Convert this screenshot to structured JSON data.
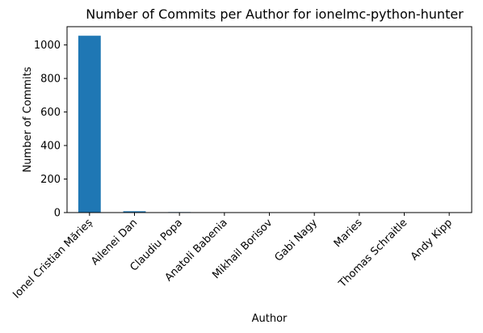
{
  "chart_data": {
    "type": "bar",
    "title": "Number of Commits per Author for ionelmc-python-hunter",
    "xlabel": "Author",
    "ylabel": "Number of Commits",
    "categories": [
      "Ionel Cristian Mărieș",
      "Ailenei Dan",
      "Claudiu Popa",
      "Anatoli Babenia",
      "Mikhail Borisov",
      "Gabi Nagy",
      "Maries",
      "Thomas Schraitle",
      "Andy Kipp"
    ],
    "values": [
      1055,
      8,
      3,
      2,
      2,
      1,
      1,
      1,
      1
    ],
    "ylim": [
      0,
      1109
    ],
    "yticks": [
      0,
      200,
      400,
      600,
      800,
      1000
    ],
    "grid": false,
    "legend": "none",
    "bar_color": "#1f77b4"
  }
}
